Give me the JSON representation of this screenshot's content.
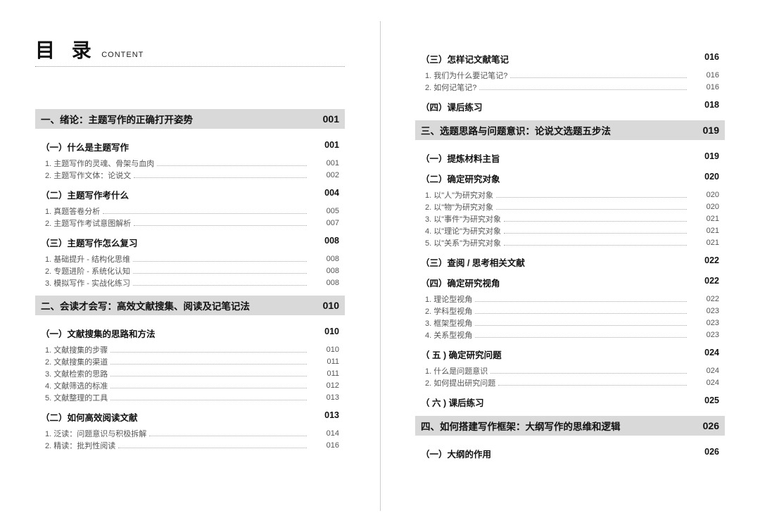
{
  "header": {
    "cn": "目 录",
    "en": "CONTENT"
  },
  "colors": {
    "chapter_bg": "#d9d9d9",
    "text_main": "#111111",
    "text_sub": "#555555",
    "dot_color": "#aaaaaa",
    "divider": "#cccccc"
  },
  "left": [
    {
      "type": "chapter",
      "title": "一、绪论：主题写作的正确打开姿势",
      "page": "001"
    },
    {
      "type": "section",
      "title": "（一）什么是主题写作",
      "page": "001"
    },
    {
      "type": "item",
      "title": "1. 主题写作的灵魂、骨架与血肉",
      "page": "001"
    },
    {
      "type": "item",
      "title": "2. 主题写作文体：论说文",
      "page": "002"
    },
    {
      "type": "section",
      "title": "（二）主题写作考什么",
      "page": "004"
    },
    {
      "type": "item",
      "title": "1. 真题答卷分析",
      "page": "005"
    },
    {
      "type": "item",
      "title": "2. 主题写作考试意图解析",
      "page": "007"
    },
    {
      "type": "section",
      "title": "（三）主题写作怎么复习",
      "page": "008"
    },
    {
      "type": "item",
      "title": "1. 基础提升 - 结构化思维",
      "page": "008"
    },
    {
      "type": "item",
      "title": "2. 专题进阶 - 系统化认知",
      "page": "008"
    },
    {
      "type": "item",
      "title": "3. 模拟写作 - 实战化练习",
      "page": "008"
    },
    {
      "type": "chapter",
      "title": "二、会读才会写：高效文献搜集、阅读及记笔记法",
      "page": "010"
    },
    {
      "type": "section",
      "title": "（一）文献搜集的思路和方法",
      "page": "010"
    },
    {
      "type": "item",
      "title": "1. 文献搜集的步骤",
      "page": "010"
    },
    {
      "type": "item",
      "title": "2. 文献搜集的渠道",
      "page": "011"
    },
    {
      "type": "item",
      "title": "3. 文献检索的思路",
      "page": "011"
    },
    {
      "type": "item",
      "title": "4. 文献筛选的标准",
      "page": "012"
    },
    {
      "type": "item",
      "title": "5. 文献整理的工具",
      "page": "013"
    },
    {
      "type": "section",
      "title": "（二）如何高效阅读文献",
      "page": "013"
    },
    {
      "type": "item",
      "title": "1. 泛读：问题意识与积极拆解",
      "page": "014"
    },
    {
      "type": "item",
      "title": "2. 精读：批判性阅读",
      "page": "016"
    }
  ],
  "right": [
    {
      "type": "section",
      "title": "（三）怎样记文献笔记",
      "page": "016"
    },
    {
      "type": "item",
      "title": "1. 我们为什么要记笔记?",
      "page": "016"
    },
    {
      "type": "item",
      "title": "2. 如何记笔记?",
      "page": "016"
    },
    {
      "type": "section",
      "title": "（四）课后练习",
      "page": "018"
    },
    {
      "type": "chapter",
      "title": "三、选题思路与问题意识：论说文选题五步法",
      "page": "019"
    },
    {
      "type": "section",
      "title": "（一）提炼材料主旨",
      "page": "019"
    },
    {
      "type": "section",
      "title": "（二）确定研究对象",
      "page": "020"
    },
    {
      "type": "item",
      "title": "1. 以\"人\"为研究对象",
      "page": "020"
    },
    {
      "type": "item",
      "title": "2. 以\"物\"为研究对象",
      "page": "020"
    },
    {
      "type": "item",
      "title": "3. 以\"事件\"为研究对象",
      "page": "021"
    },
    {
      "type": "item",
      "title": "4. 以\"理论\"为研究对象",
      "page": "021"
    },
    {
      "type": "item",
      "title": "5. 以\"关系\"为研究对象",
      "page": "021"
    },
    {
      "type": "section",
      "title": "（三）查阅 / 思考相关文献",
      "page": "022"
    },
    {
      "type": "section",
      "title": "（四）确定研究视角",
      "page": "022"
    },
    {
      "type": "item",
      "title": "1. 理论型视角",
      "page": "022"
    },
    {
      "type": "item",
      "title": "2. 学科型视角",
      "page": "023"
    },
    {
      "type": "item",
      "title": "3. 框架型视角",
      "page": "023"
    },
    {
      "type": "item",
      "title": "4. 关系型视角",
      "page": "023"
    },
    {
      "type": "section",
      "title": "（ 五 ) 确定研究问题",
      "page": "024"
    },
    {
      "type": "item",
      "title": "1. 什么是问题意识",
      "page": "024"
    },
    {
      "type": "item",
      "title": "2. 如何提出研究问题",
      "page": "024"
    },
    {
      "type": "section",
      "title": "（ 六 ) 课后练习",
      "page": "025"
    },
    {
      "type": "chapter",
      "title": "四、如何搭建写作框架：大纲写作的思维和逻辑",
      "page": "026"
    },
    {
      "type": "section",
      "title": "（一）大纲的作用",
      "page": "026"
    }
  ]
}
